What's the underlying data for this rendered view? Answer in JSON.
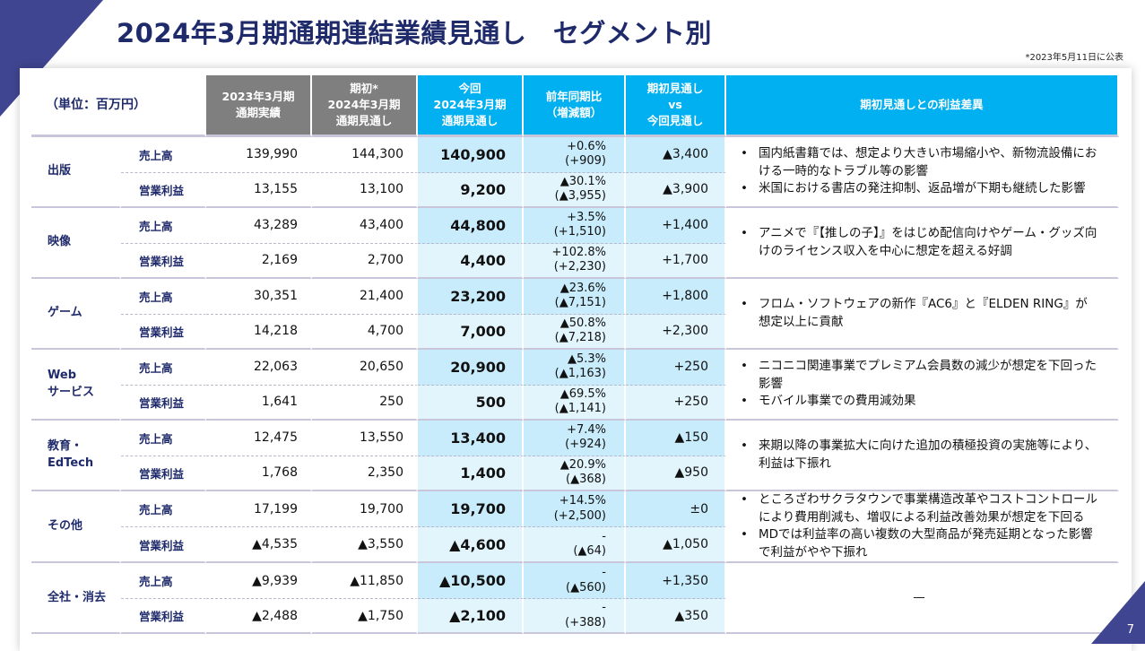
{
  "title": "2024年3月期通期連結業績見通し　セグメント別",
  "footnote": "*2023年5月11日に公表",
  "page_number": "7",
  "colors": {
    "navy": "#1f2a6b",
    "accent": "#3f4590",
    "header_gray": "#7f7f7f",
    "header_cyan": "#00b0f0",
    "highlight": "#c8ecfb"
  },
  "header": {
    "unit": "（単位：百万円）",
    "cols": [
      "2023年3月期\n通期実績",
      "期初*\n2024年3月期\n通期見通し",
      "今回\n2024年3月期\n通期見通し",
      "前年同期比\n（増減額）",
      "期初見通し\nvs\n今回見通し",
      "期初見通しとの利益差異"
    ]
  },
  "segments": [
    {
      "name": "出版",
      "rows": [
        {
          "item": "売上高",
          "actual": "139,990",
          "initial": "144,300",
          "current": "140,900",
          "yoy_pct": "+0.6%",
          "yoy_amt": "(+909)",
          "vs": "▲3,400"
        },
        {
          "item": "営業利益",
          "actual": "13,155",
          "initial": "13,100",
          "current": "9,200",
          "yoy_pct": "▲30.1%",
          "yoy_amt": "(▲3,955)",
          "vs": "▲3,900"
        }
      ],
      "notes": [
        "国内紙書籍では、想定より大きい市場縮小や、新物流設備における一時的なトラブル等の影響",
        "米国における書店の発注抑制、返品増が下期も継続した影響"
      ]
    },
    {
      "name": "映像",
      "rows": [
        {
          "item": "売上高",
          "actual": "43,289",
          "initial": "43,400",
          "current": "44,800",
          "yoy_pct": "+3.5%",
          "yoy_amt": "(+1,510)",
          "vs": "+1,400"
        },
        {
          "item": "営業利益",
          "actual": "2,169",
          "initial": "2,700",
          "current": "4,400",
          "yoy_pct": "+102.8%",
          "yoy_amt": "(+2,230)",
          "vs": "+1,700"
        }
      ],
      "notes": [
        "アニメで『【推しの子】』をはじめ配信向けやゲーム・グッズ向けのライセンス収入を中心に想定を超える好調"
      ]
    },
    {
      "name": "ゲーム",
      "rows": [
        {
          "item": "売上高",
          "actual": "30,351",
          "initial": "21,400",
          "current": "23,200",
          "yoy_pct": "▲23.6%",
          "yoy_amt": "(▲7,151)",
          "vs": "+1,800"
        },
        {
          "item": "営業利益",
          "actual": "14,218",
          "initial": "4,700",
          "current": "7,000",
          "yoy_pct": "▲50.8%",
          "yoy_amt": "(▲7,218)",
          "vs": "+2,300"
        }
      ],
      "notes": [
        "フロム・ソフトウェアの新作『AC6』と『ELDEN RING』が想定以上に貢献"
      ]
    },
    {
      "name": "Web\nサービス",
      "rows": [
        {
          "item": "売上高",
          "actual": "22,063",
          "initial": "20,650",
          "current": "20,900",
          "yoy_pct": "▲5.3%",
          "yoy_amt": "(▲1,163)",
          "vs": "+250"
        },
        {
          "item": "営業利益",
          "actual": "1,641",
          "initial": "250",
          "current": "500",
          "yoy_pct": "▲69.5%",
          "yoy_amt": "(▲1,141)",
          "vs": "+250"
        }
      ],
      "notes": [
        "ニコニコ関連事業でプレミアム会員数の減少が想定を下回った影響",
        "モバイル事業での費用減効果"
      ]
    },
    {
      "name": "教育・\nEdTech",
      "rows": [
        {
          "item": "売上高",
          "actual": "12,475",
          "initial": "13,550",
          "current": "13,400",
          "yoy_pct": "+7.4%",
          "yoy_amt": "(+924)",
          "vs": "▲150"
        },
        {
          "item": "営業利益",
          "actual": "1,768",
          "initial": "2,350",
          "current": "1,400",
          "yoy_pct": "▲20.9%",
          "yoy_amt": "(▲368)",
          "vs": "▲950"
        }
      ],
      "notes": [
        "来期以降の事業拡大に向けた追加の積極投資の実施等により、利益は下振れ"
      ]
    },
    {
      "name": "その他",
      "rows": [
        {
          "item": "売上高",
          "actual": "17,199",
          "initial": "19,700",
          "current": "19,700",
          "yoy_pct": "+14.5%",
          "yoy_amt": "(+2,500)",
          "vs": "±0"
        },
        {
          "item": "営業利益",
          "actual": "▲4,535",
          "initial": "▲3,550",
          "current": "▲4,600",
          "yoy_pct": "-",
          "yoy_amt": "(▲64)",
          "vs": "▲1,050"
        }
      ],
      "notes": [
        "ところざわサクラタウンで事業構造改革やコストコントロールにより費用削減も、増収による利益改善効果が想定を下回る",
        "MDでは利益率の高い複数の大型商品が発売延期となった影響で利益がやや下振れ"
      ]
    },
    {
      "name": "全社・消去",
      "rows": [
        {
          "item": "売上高",
          "actual": "▲9,939",
          "initial": "▲11,850",
          "current": "▲10,500",
          "yoy_pct": "-",
          "yoy_amt": "(▲560)",
          "vs": "+1,350"
        },
        {
          "item": "営業利益",
          "actual": "▲2,488",
          "initial": "▲1,750",
          "current": "▲2,100",
          "yoy_pct": "-",
          "yoy_amt": "(+388)",
          "vs": "▲350"
        }
      ],
      "notes_dash": "—"
    }
  ]
}
